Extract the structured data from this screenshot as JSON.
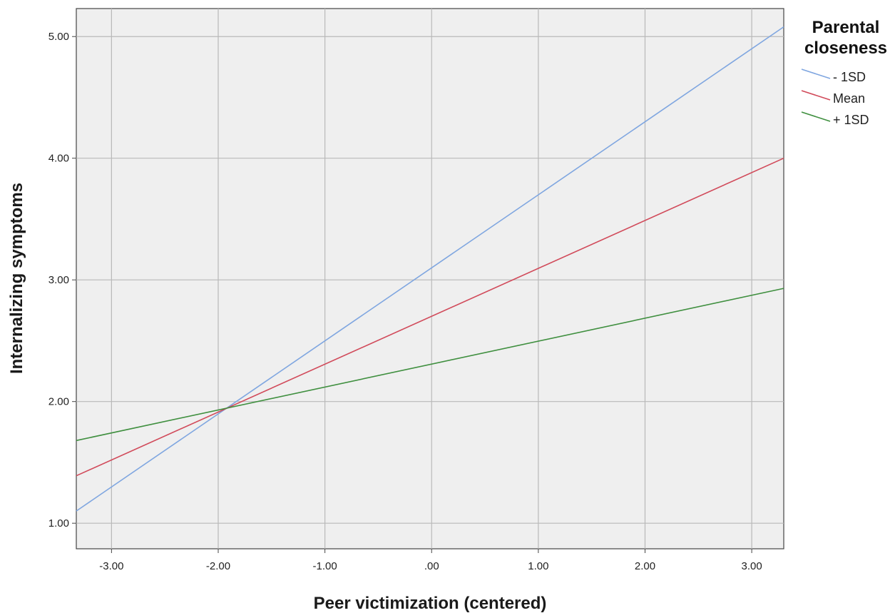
{
  "chart_data": {
    "type": "line",
    "title": "",
    "xlabel": "Peer victimization (centered)",
    "ylabel": "Internalizing symptoms",
    "xlim": [
      -3.33,
      3.3
    ],
    "ylim": [
      0.79,
      5.23
    ],
    "x_ticks": [
      -3,
      -2,
      -1,
      0,
      1,
      2,
      3
    ],
    "x_tick_labels": [
      "-3.00",
      "-2.00",
      "-1.00",
      ".00",
      "1.00",
      "2.00",
      "3.00"
    ],
    "y_ticks": [
      1,
      2,
      3,
      4,
      5
    ],
    "y_tick_labels": [
      "1.00",
      "2.00",
      "3.00",
      "4.00",
      "5.00"
    ],
    "grid": true,
    "legend": {
      "title_lines": [
        "Parental",
        "closeness"
      ],
      "placement": "top-right-outside"
    },
    "series": [
      {
        "name": "- 1SD",
        "color": "#7fa6e0",
        "x": [
          -3.33,
          3.3
        ],
        "y": [
          1.1,
          5.08
        ]
      },
      {
        "name": "Mean",
        "color": "#d14a5a",
        "x": [
          -3.33,
          3.3
        ],
        "y": [
          1.39,
          4.0
        ]
      },
      {
        "name": "+ 1SD",
        "color": "#3f8f3f",
        "x": [
          -3.33,
          3.3
        ],
        "y": [
          1.68,
          2.93
        ]
      }
    ]
  }
}
